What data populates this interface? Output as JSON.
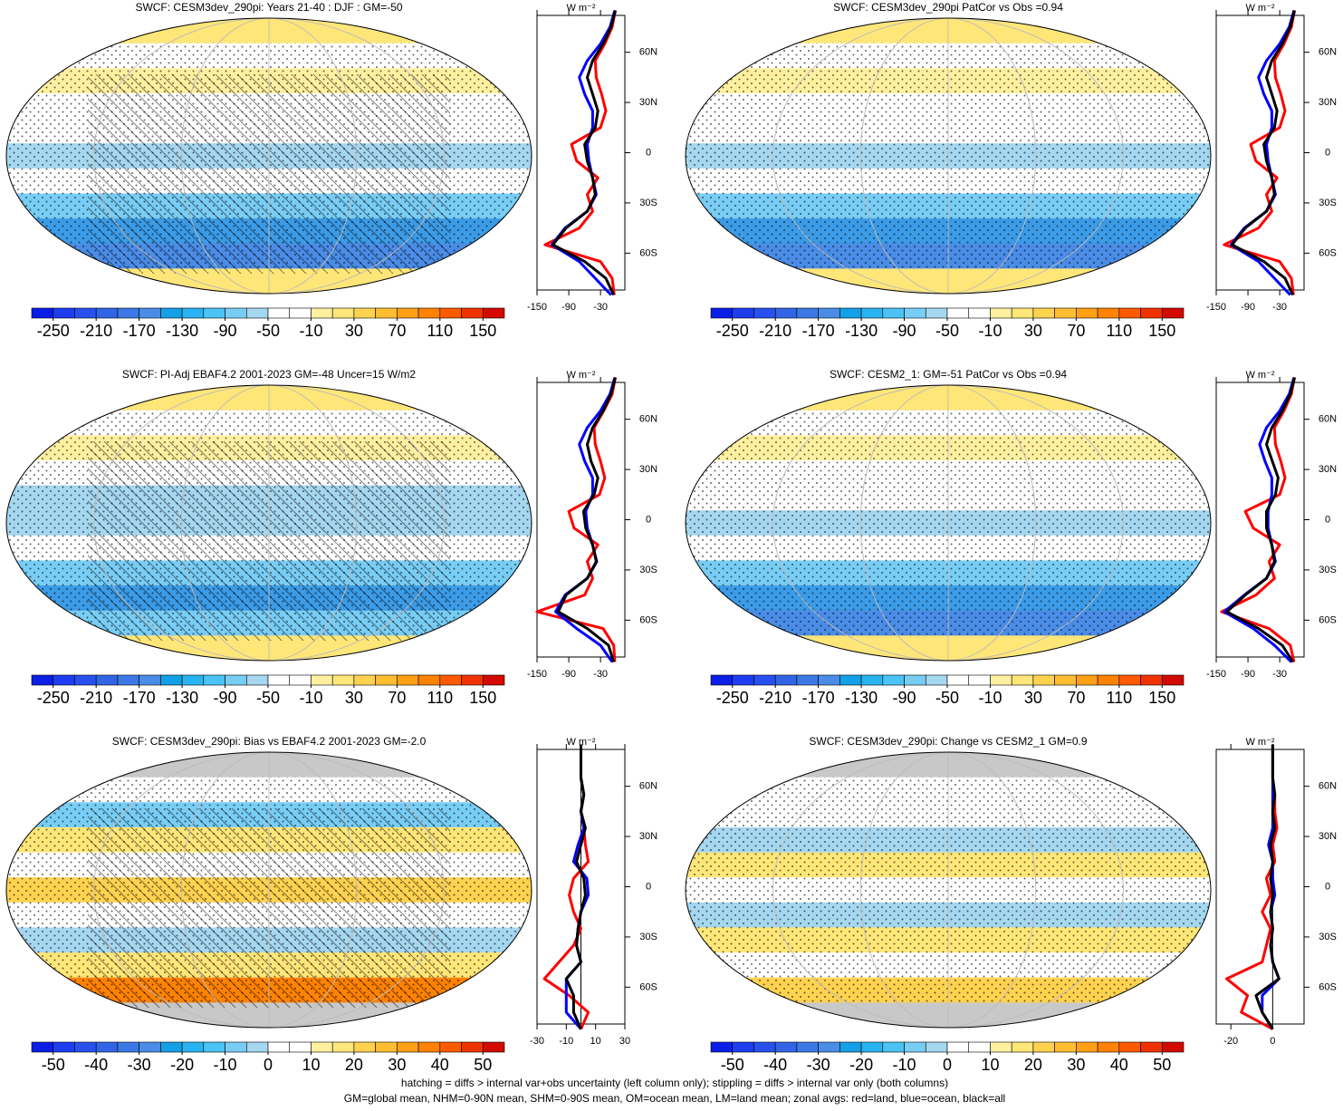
{
  "colormap": [
    "#0a1ee6",
    "#1e3cf0",
    "#2850f0",
    "#3264e6",
    "#3c78e6",
    "#4a8ce6",
    "#14a0e6",
    "#28b4f0",
    "#4bc3f5",
    "#78cdf5",
    "#a5d7f0",
    "#ffffff",
    "#ffffff",
    "#fff0a0",
    "#ffe678",
    "#ffd250",
    "#ffbe32",
    "#ffa014",
    "#ff8200",
    "#ff5a00",
    "#f03200",
    "#d20a00"
  ],
  "notes": [
    "hatching = diffs > internal var+obs uncertainty (left column only); stippling = diffs > internal var only (both columns)",
    "GM=global mean, NHM=0-90N mean, SHM=0-90S mean, OM=ocean mean, LM=land mean; zonal avgs: red=land, blue=ocean, black=all"
  ],
  "chart_data": [
    {
      "type": "line",
      "title": "SWCF: CESM3dev_290pi: Years 21-40 : DJF : GM=-50",
      "unit": "W m⁻²",
      "lat": [
        -85,
        -75,
        -65,
        -55,
        -45,
        -35,
        -25,
        -15,
        -5,
        5,
        15,
        25,
        35,
        45,
        55,
        65,
        75,
        85
      ],
      "series": [
        {
          "color": "#ff0000",
          "values": [
            -4,
            -8,
            -30,
            -135,
            -70,
            -45,
            -55,
            -35,
            -75,
            -85,
            -30,
            -20,
            -28,
            -38,
            -40,
            -22,
            -8,
            -2
          ]
        },
        {
          "color": "#0000ff",
          "values": [
            -10,
            -40,
            -70,
            -122,
            -97,
            -55,
            -38,
            -45,
            -52,
            -55,
            -45,
            -45,
            -60,
            -70,
            -55,
            -30,
            -12,
            -3
          ]
        },
        {
          "color": "#000000",
          "values": [
            -5,
            -20,
            -60,
            -120,
            -95,
            -55,
            -40,
            -45,
            -55,
            -60,
            -40,
            -35,
            -45,
            -55,
            -45,
            -25,
            -10,
            -2
          ]
        }
      ],
      "xlim": [
        -150,
        16
      ],
      "xticks": [
        -150,
        -90,
        -30
      ],
      "ylim": [
        -82,
        82
      ],
      "yticks": [
        {
          "value": -60,
          "label": "60S"
        },
        {
          "value": -30,
          "label": "30S"
        },
        0,
        {
          "value": 30,
          "label": "30N"
        },
        {
          "value": 60,
          "label": "60N"
        }
      ],
      "zero_line": false,
      "colorbar": {
        "clim": [
          -270,
          170
        ],
        "ticks": [
          -250,
          -210,
          -170,
          -130,
          -90,
          -50,
          -10,
          30,
          70,
          110,
          150
        ]
      }
    },
    {
      "type": "line",
      "title": "SWCF: CESM3dev_290pi PatCor vs Obs =0.94",
      "unit": "W m⁻²",
      "lat": [
        -85,
        -75,
        -65,
        -55,
        -45,
        -35,
        -25,
        -15,
        -5,
        5,
        15,
        25,
        35,
        45,
        55,
        65,
        75,
        85
      ],
      "series": [
        {
          "color": "#ff0000",
          "values": [
            -4,
            -8,
            -30,
            -135,
            -70,
            -45,
            -55,
            -35,
            -75,
            -85,
            -30,
            -20,
            -28,
            -38,
            -40,
            -22,
            -8,
            -2
          ]
        },
        {
          "color": "#0000ff",
          "values": [
            -10,
            -40,
            -70,
            -122,
            -97,
            -55,
            -38,
            -45,
            -52,
            -55,
            -45,
            -45,
            -60,
            -70,
            -55,
            -30,
            -12,
            -3
          ]
        },
        {
          "color": "#000000",
          "values": [
            -5,
            -20,
            -60,
            -120,
            -95,
            -55,
            -40,
            -45,
            -55,
            -60,
            -40,
            -35,
            -45,
            -55,
            -45,
            -25,
            -10,
            -2
          ]
        }
      ],
      "xlim": [
        -150,
        16
      ],
      "xticks": [
        -150,
        -90,
        -30
      ],
      "ylim": [
        -82,
        82
      ],
      "yticks": [
        {
          "value": -60,
          "label": "60S"
        },
        {
          "value": -30,
          "label": "30S"
        },
        0,
        {
          "value": 30,
          "label": "30N"
        },
        {
          "value": 60,
          "label": "60N"
        }
      ],
      "zero_line": false,
      "colorbar": {
        "clim": [
          -270,
          170
        ],
        "ticks": [
          -250,
          -210,
          -170,
          -130,
          -90,
          -50,
          -10,
          30,
          70,
          110,
          150
        ]
      }
    },
    {
      "type": "line",
      "title": "SWCF: PI-Adj EBAF4.2 2001-2023 GM=-48 Uncer=15 W/m2",
      "unit": "W m⁻²",
      "lat": [
        -85,
        -75,
        -65,
        -55,
        -45,
        -35,
        -25,
        -15,
        -5,
        5,
        15,
        25,
        35,
        45,
        55,
        65,
        75,
        85
      ],
      "series": [
        {
          "color": "#ff0000",
          "values": [
            -3,
            -5,
            -25,
            -150,
            -60,
            -45,
            -55,
            -35,
            -80,
            -90,
            -32,
            -22,
            -30,
            -40,
            -42,
            -24,
            -8,
            -2
          ]
        },
        {
          "color": "#0000ff",
          "values": [
            -8,
            -30,
            -75,
            -115,
            -97,
            -55,
            -37,
            -45,
            -55,
            -58,
            -45,
            -45,
            -60,
            -70,
            -55,
            -30,
            -12,
            -3
          ]
        },
        {
          "color": "#000000",
          "values": [
            -5,
            -15,
            -55,
            -110,
            -95,
            -55,
            -38,
            -45,
            -58,
            -62,
            -42,
            -35,
            -48,
            -55,
            -45,
            -25,
            -10,
            -2
          ]
        }
      ],
      "xlim": [
        -150,
        16
      ],
      "xticks": [
        -150,
        -90,
        -30
      ],
      "ylim": [
        -82,
        82
      ],
      "yticks": [
        {
          "value": -60,
          "label": "60S"
        },
        {
          "value": -30,
          "label": "30S"
        },
        0,
        {
          "value": 30,
          "label": "30N"
        },
        {
          "value": 60,
          "label": "60N"
        }
      ],
      "zero_line": false,
      "colorbar": {
        "clim": [
          -270,
          170
        ],
        "ticks": [
          -250,
          -210,
          -170,
          -130,
          -90,
          -50,
          -10,
          30,
          70,
          110,
          150
        ]
      }
    },
    {
      "type": "line",
      "title": "SWCF: CESM2_1: GM=-51 PatCor vs Obs =0.94",
      "unit": "W m⁻²",
      "lat": [
        -85,
        -75,
        -65,
        -55,
        -45,
        -35,
        -25,
        -15,
        -5,
        5,
        15,
        25,
        35,
        45,
        55,
        65,
        75,
        85
      ],
      "series": [
        {
          "color": "#ff0000",
          "values": [
            -3,
            -10,
            -50,
            -140,
            -75,
            -40,
            -50,
            -30,
            -80,
            -95,
            -30,
            -20,
            -28,
            -38,
            -40,
            -22,
            -8,
            -2
          ]
        },
        {
          "color": "#0000ff",
          "values": [
            -8,
            -40,
            -80,
            -135,
            -97,
            -55,
            -38,
            -45,
            -52,
            -52,
            -45,
            -45,
            -58,
            -68,
            -55,
            -30,
            -12,
            -3
          ]
        },
        {
          "color": "#000000",
          "values": [
            -5,
            -25,
            -70,
            -130,
            -95,
            -55,
            -40,
            -45,
            -55,
            -55,
            -38,
            -33,
            -44,
            -55,
            -45,
            -25,
            -10,
            -2
          ]
        }
      ],
      "xlim": [
        -150,
        16
      ],
      "xticks": [
        -150,
        -90,
        -30
      ],
      "ylim": [
        -82,
        82
      ],
      "yticks": [
        {
          "value": -60,
          "label": "60S"
        },
        {
          "value": -30,
          "label": "30S"
        },
        0,
        {
          "value": 30,
          "label": "30N"
        },
        {
          "value": 60,
          "label": "60N"
        }
      ],
      "zero_line": false,
      "colorbar": {
        "clim": [
          -270,
          170
        ],
        "ticks": [
          -250,
          -210,
          -170,
          -130,
          -90,
          -50,
          -10,
          30,
          70,
          110,
          150
        ]
      }
    },
    {
      "type": "line",
      "title": "SWCF: CESM3dev_290pi: Bias vs EBAF4.2 2001-2023 GM=-2.0",
      "unit": "W m⁻²",
      "lat": [
        -85,
        -75,
        -65,
        -55,
        -45,
        -35,
        -25,
        -15,
        -5,
        5,
        15,
        25,
        35,
        45,
        55,
        65,
        75,
        85
      ],
      "series": [
        {
          "color": "#ff0000",
          "values": [
            0,
            5,
            -8,
            -25,
            -15,
            -5,
            0,
            -5,
            -8,
            -5,
            5,
            3,
            2,
            0,
            2,
            0,
            0,
            0
          ]
        },
        {
          "color": "#0000ff",
          "values": [
            0,
            -10,
            -10,
            -10,
            0,
            -3,
            -2,
            0,
            5,
            4,
            -5,
            -2,
            2,
            0,
            2,
            0,
            0,
            0
          ]
        },
        {
          "color": "#000000",
          "values": [
            0,
            -5,
            -5,
            -10,
            0,
            -3,
            -2,
            0,
            3,
            2,
            -3,
            0,
            3,
            0,
            2,
            0,
            0,
            0
          ]
        }
      ],
      "xlim": [
        -30,
        30
      ],
      "xticks": [
        -30,
        -10,
        10,
        30
      ],
      "ylim": [
        -82,
        82
      ],
      "yticks": [
        {
          "value": -60,
          "label": "60S"
        },
        {
          "value": -30,
          "label": "30S"
        },
        0,
        {
          "value": 30,
          "label": "30N"
        },
        {
          "value": 60,
          "label": "60N"
        }
      ],
      "zero_line": true,
      "colorbar": {
        "clim": [
          -55,
          55
        ],
        "ticks": [
          -50,
          -40,
          -30,
          -20,
          -10,
          0,
          10,
          20,
          30,
          40,
          50
        ]
      }
    },
    {
      "type": "line",
      "title": "SWCF: CESM3dev_290pi: Change vs CESM2_1 GM=0.9",
      "unit": "W m⁻²",
      "lat": [
        -85,
        -75,
        -65,
        -55,
        -45,
        -35,
        -25,
        -15,
        -5,
        5,
        15,
        25,
        35,
        45,
        55,
        65,
        75,
        85
      ],
      "series": [
        {
          "color": "#ff0000",
          "values": [
            0,
            -15,
            -12,
            -22,
            -5,
            -3,
            -1,
            -5,
            -1,
            -3,
            1,
            0,
            2,
            1,
            1,
            0,
            0,
            0
          ]
        },
        {
          "color": "#0000ff",
          "values": [
            0,
            -5,
            -5,
            3,
            0,
            -1,
            0,
            -1,
            1,
            0,
            0,
            -2,
            0,
            0,
            0,
            0,
            0,
            0
          ]
        },
        {
          "color": "#000000",
          "values": [
            0,
            -5,
            -8,
            3,
            0,
            -1,
            0,
            -1,
            0,
            -1,
            0,
            -1,
            1,
            0,
            1,
            0,
            0,
            0
          ]
        }
      ],
      "xlim": [
        -27,
        15
      ],
      "xticks": [
        -20,
        0
      ],
      "ylim": [
        -82,
        82
      ],
      "yticks": [
        {
          "value": -60,
          "label": "60S"
        },
        {
          "value": -30,
          "label": "30S"
        },
        0,
        {
          "value": 30,
          "label": "30N"
        },
        {
          "value": 60,
          "label": "60N"
        }
      ],
      "zero_line": true,
      "colorbar": {
        "clim": [
          -55,
          55
        ],
        "ticks": [
          -50,
          -40,
          -30,
          -20,
          -10,
          0,
          10,
          20,
          30,
          40,
          50
        ]
      }
    }
  ]
}
